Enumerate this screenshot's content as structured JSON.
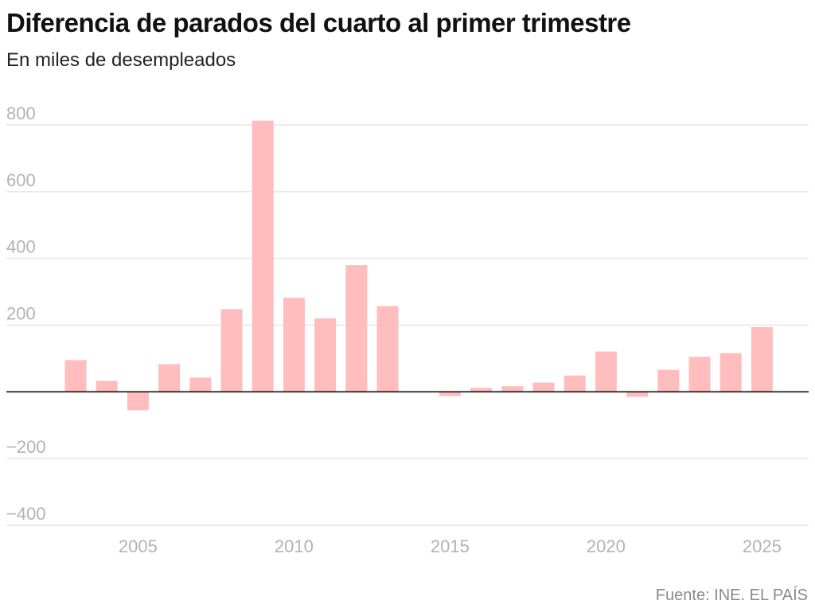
{
  "title": "Diferencia de parados del cuarto al primer trimestre",
  "subtitle": "En miles de desempleados",
  "source": "Fuente: INE. EL PAÍS",
  "colors": {
    "bar": "#ffbdbd",
    "grid": "#e6e6e6",
    "zero_line": "#111111",
    "tick_text": "#b3b3b3"
  },
  "chart_data": {
    "type": "bar",
    "title": "Diferencia de parados del cuarto al primer trimestre",
    "subtitle": "En miles de desempleados",
    "xlabel": "",
    "ylabel": "",
    "x": [
      2003,
      2004,
      2005,
      2006,
      2007,
      2008,
      2009,
      2010,
      2011,
      2012,
      2013,
      2014,
      2015,
      2016,
      2017,
      2018,
      2019,
      2020,
      2021,
      2022,
      2023,
      2024,
      2025
    ],
    "values": [
      95,
      33,
      -55,
      83,
      43,
      248,
      813,
      282,
      220,
      380,
      257,
      0,
      -13,
      12,
      17,
      28,
      49,
      121,
      -15,
      66,
      105,
      116,
      194
    ],
    "ylim": [
      -400,
      800
    ],
    "yticks": [
      800,
      600,
      400,
      200,
      0,
      -200,
      -400
    ],
    "ytick_labels": [
      "800",
      "600",
      "400",
      "200",
      "",
      "−200",
      "−400"
    ],
    "xticks": [
      2005,
      2010,
      2015,
      2020,
      2025
    ],
    "xtick_labels": [
      "2005",
      "2010",
      "2015",
      "2020",
      "2025"
    ],
    "grid": true,
    "legend": "none"
  }
}
